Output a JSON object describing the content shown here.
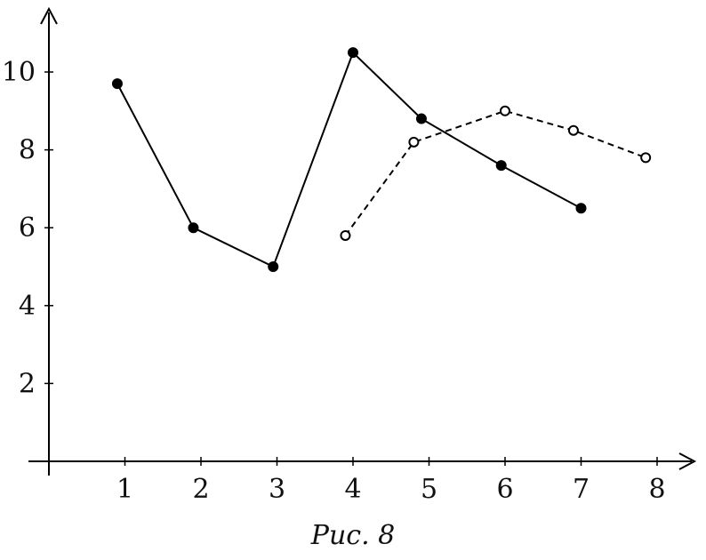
{
  "caption": "Рис. 8",
  "chart_data": {
    "type": "line",
    "title": "",
    "xlabel": "",
    "ylabel": "",
    "xlim": [
      0,
      8.5
    ],
    "ylim": [
      0,
      11.5
    ],
    "x_ticks": [
      1,
      2,
      3,
      4,
      5,
      6,
      7,
      8
    ],
    "y_ticks": [
      2,
      4,
      6,
      8,
      10
    ],
    "grid": false,
    "series": [
      {
        "style": "solid",
        "marker": "filled-circle",
        "color": "#000000",
        "points": [
          {
            "x": 0.9,
            "y": 9.7
          },
          {
            "x": 1.9,
            "y": 6.0
          },
          {
            "x": 2.95,
            "y": 5.0
          },
          {
            "x": 4.0,
            "y": 10.5
          },
          {
            "x": 4.9,
            "y": 8.8
          },
          {
            "x": 5.95,
            "y": 7.6
          },
          {
            "x": 7.0,
            "y": 6.5
          }
        ]
      },
      {
        "style": "dashed",
        "marker": "open-circle",
        "color": "#000000",
        "points": [
          {
            "x": 3.9,
            "y": 5.8
          },
          {
            "x": 4.8,
            "y": 8.2
          },
          {
            "x": 6.0,
            "y": 9.0
          },
          {
            "x": 6.9,
            "y": 8.5
          },
          {
            "x": 7.85,
            "y": 7.8
          }
        ]
      }
    ]
  }
}
